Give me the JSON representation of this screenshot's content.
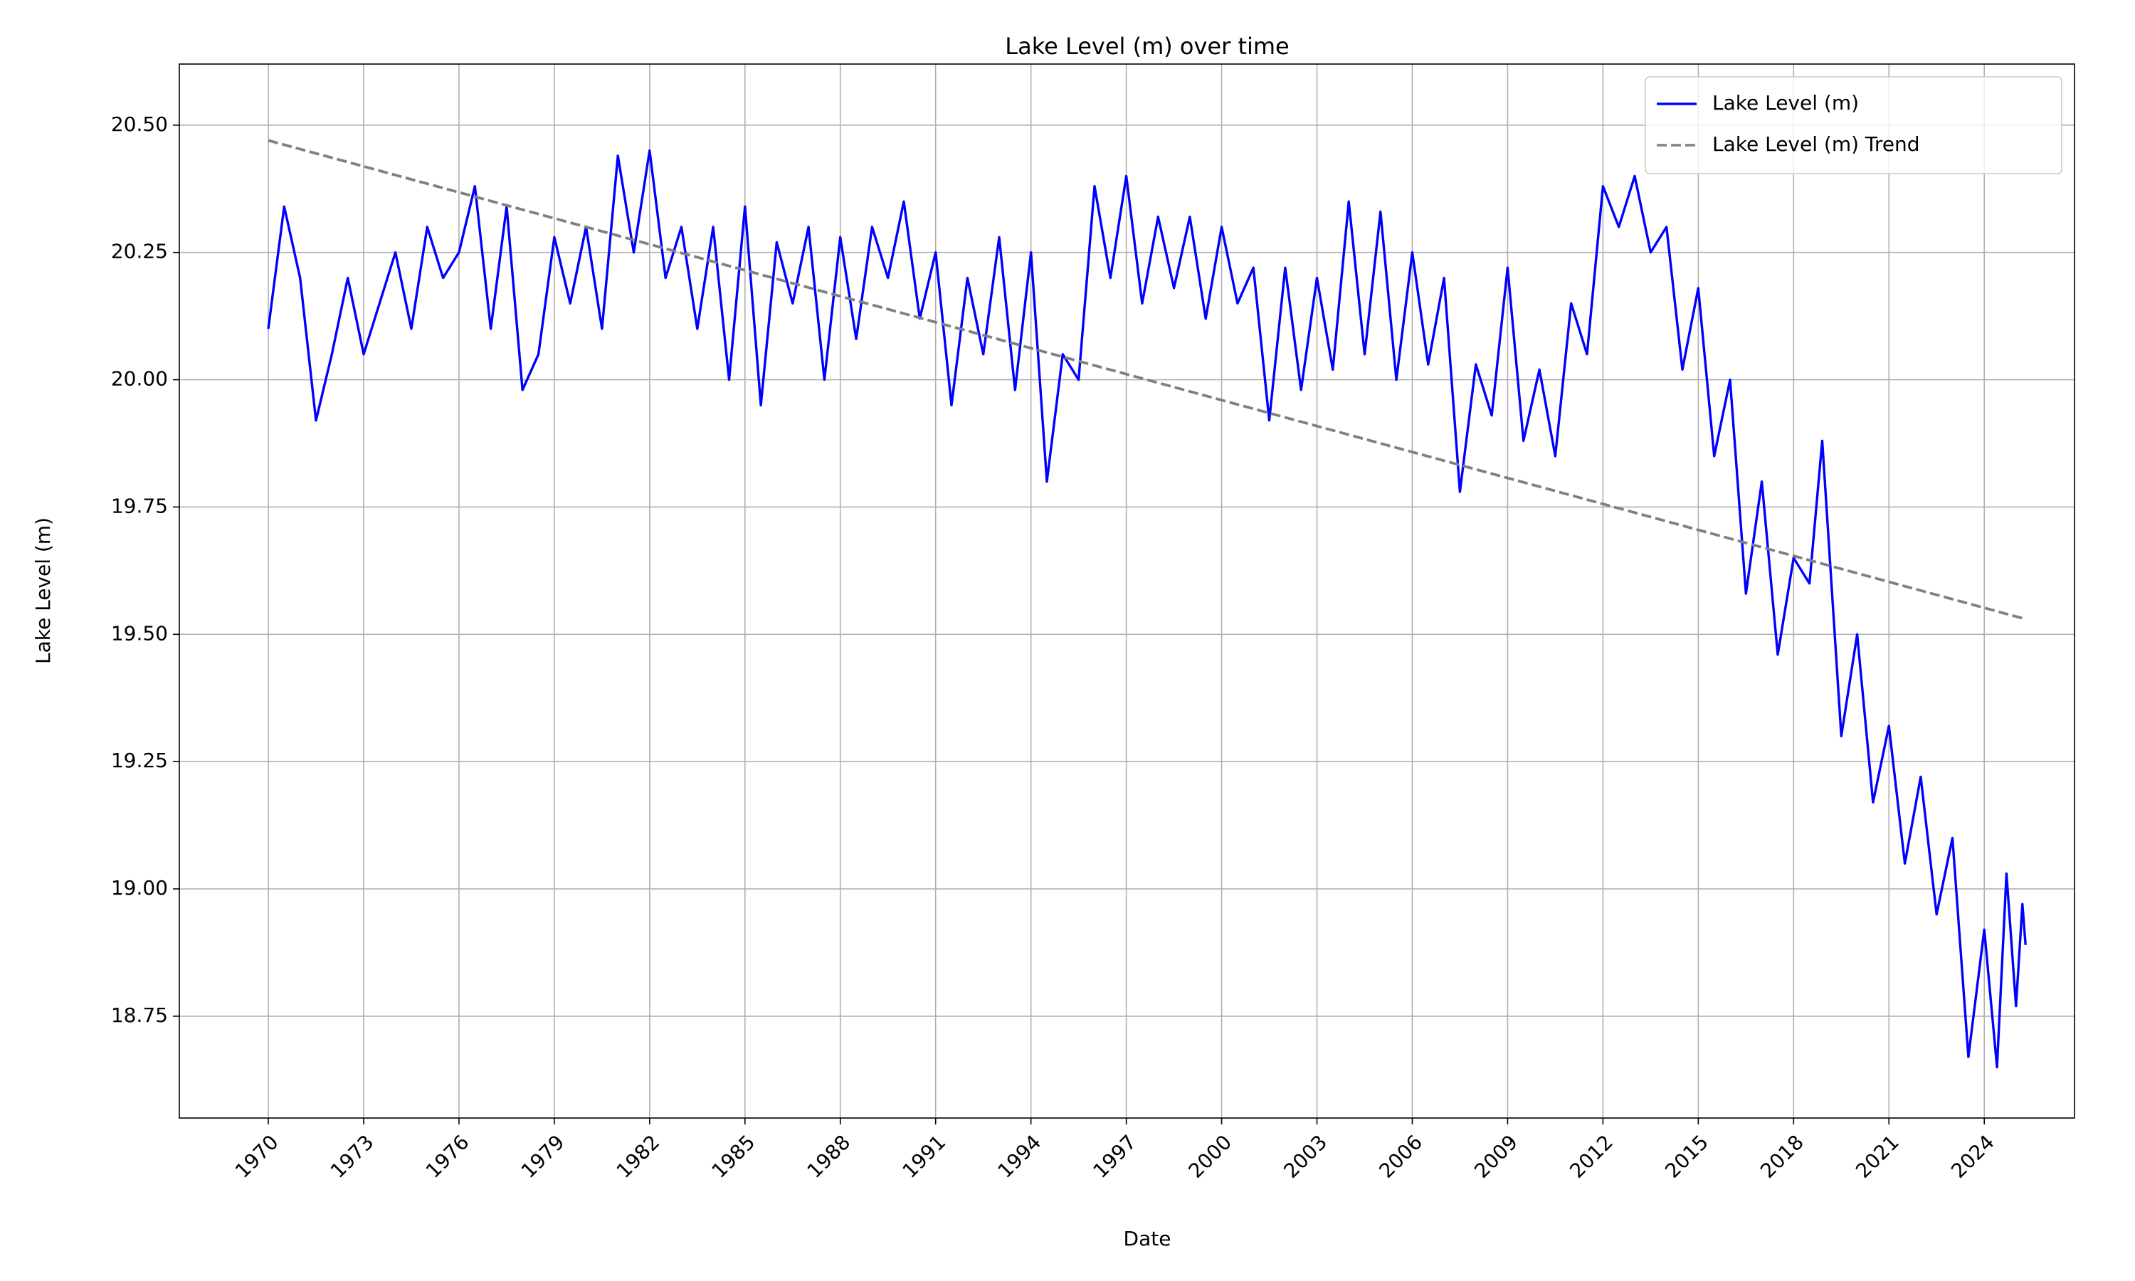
{
  "chart_data": {
    "type": "line",
    "title": "Lake Level (m) over time",
    "xlabel": "Date",
    "ylabel": "Lake Level (m)",
    "xlim": [
      1967.2,
      2026.84
    ],
    "ylim": [
      18.55,
      20.62
    ],
    "xticks": [
      1970,
      1973,
      1976,
      1979,
      1982,
      1985,
      1988,
      1991,
      1994,
      1997,
      2000,
      2003,
      2006,
      2009,
      2012,
      2015,
      2018,
      2021,
      2024
    ],
    "yticks": [
      18.75,
      {
        "value": 19,
        "label": "19.00"
      },
      19.25,
      {
        "value": 19.5,
        "label": "19.50"
      },
      19.75,
      {
        "value": 20,
        "label": "20.00"
      },
      20.25,
      {
        "value": 20.5,
        "label": "20.50"
      }
    ],
    "grid": true,
    "legend": "upper right",
    "series": [
      {
        "name": "Lake Level (m)",
        "color": "#0000ff",
        "dash": "solid",
        "x": [
          1970.0,
          1970.5,
          1971.0,
          1971.5,
          1972.0,
          1972.5,
          1973.0,
          1973.5,
          1974.0,
          1974.5,
          1975.0,
          1975.5,
          1976.0,
          1976.5,
          1977.0,
          1977.5,
          1978.0,
          1978.5,
          1979.0,
          1979.5,
          1980.0,
          1980.5,
          1981.0,
          1981.5,
          1982.0,
          1982.5,
          1983.0,
          1983.5,
          1984.0,
          1984.5,
          1985.0,
          1985.5,
          1986.0,
          1986.5,
          1987.0,
          1987.5,
          1988.0,
          1988.5,
          1989.0,
          1989.5,
          1990.0,
          1990.5,
          1991.0,
          1991.5,
          1992.0,
          1992.5,
          1993.0,
          1993.5,
          1994.0,
          1994.5,
          1995.0,
          1995.5,
          1996.0,
          1996.5,
          1997.0,
          1997.5,
          1998.0,
          1998.5,
          1999.0,
          1999.5,
          2000.0,
          2000.5,
          2001.0,
          2001.5,
          2002.0,
          2002.5,
          2003.0,
          2003.5,
          2004.0,
          2004.5,
          2005.0,
          2005.5,
          2006.0,
          2006.5,
          2007.0,
          2007.5,
          2008.0,
          2008.5,
          2009.0,
          2009.5,
          2010.0,
          2010.5,
          2011.0,
          2011.5,
          2012.0,
          2012.5,
          2013.0,
          2013.5,
          2014.0,
          2014.5,
          2015.0,
          2015.5,
          2016.0,
          2016.5,
          2017.0,
          2017.5,
          2018.0,
          2018.5,
          2018.9,
          2019.5,
          2020.0,
          2020.5,
          2021.0,
          2021.5,
          2022.0,
          2022.5,
          2023.0,
          2023.5,
          2024.0,
          2024.4,
          2024.7,
          2025.0,
          2025.2,
          2025.3
        ],
        "values": [
          20.1,
          20.34,
          20.2,
          19.92,
          20.05,
          20.2,
          20.05,
          20.15,
          20.25,
          20.1,
          20.3,
          20.2,
          20.25,
          20.38,
          20.1,
          20.34,
          19.98,
          20.05,
          20.28,
          20.15,
          20.3,
          20.1,
          20.44,
          20.25,
          20.45,
          20.2,
          20.3,
          20.1,
          20.3,
          20.0,
          20.34,
          19.95,
          20.27,
          20.15,
          20.3,
          20.0,
          20.28,
          20.08,
          20.3,
          20.2,
          20.35,
          20.12,
          20.25,
          19.95,
          20.2,
          20.05,
          20.28,
          19.98,
          20.25,
          19.8,
          20.05,
          20.0,
          20.38,
          20.2,
          20.4,
          20.15,
          20.32,
          20.18,
          20.32,
          20.12,
          20.3,
          20.15,
          20.22,
          19.92,
          20.22,
          19.98,
          20.2,
          20.02,
          20.35,
          20.05,
          20.33,
          20.0,
          20.25,
          20.03,
          20.2,
          19.78,
          20.03,
          19.93,
          20.22,
          19.88,
          20.02,
          19.85,
          20.15,
          20.05,
          20.38,
          20.3,
          20.4,
          20.25,
          20.3,
          20.02,
          20.18,
          19.85,
          20.0,
          19.58,
          19.8,
          19.46,
          19.65,
          19.6,
          19.88,
          19.3,
          19.5,
          19.17,
          19.32,
          19.05,
          19.22,
          18.95,
          19.1,
          18.67,
          18.92,
          18.65,
          19.03,
          18.77,
          18.97,
          18.89
        ]
      },
      {
        "name": "Lake Level (m) Trend",
        "color": "#808080",
        "dash": "dashed",
        "x": [
          1970.0,
          2025.3
        ],
        "values": [
          20.47,
          19.53
        ]
      }
    ]
  }
}
